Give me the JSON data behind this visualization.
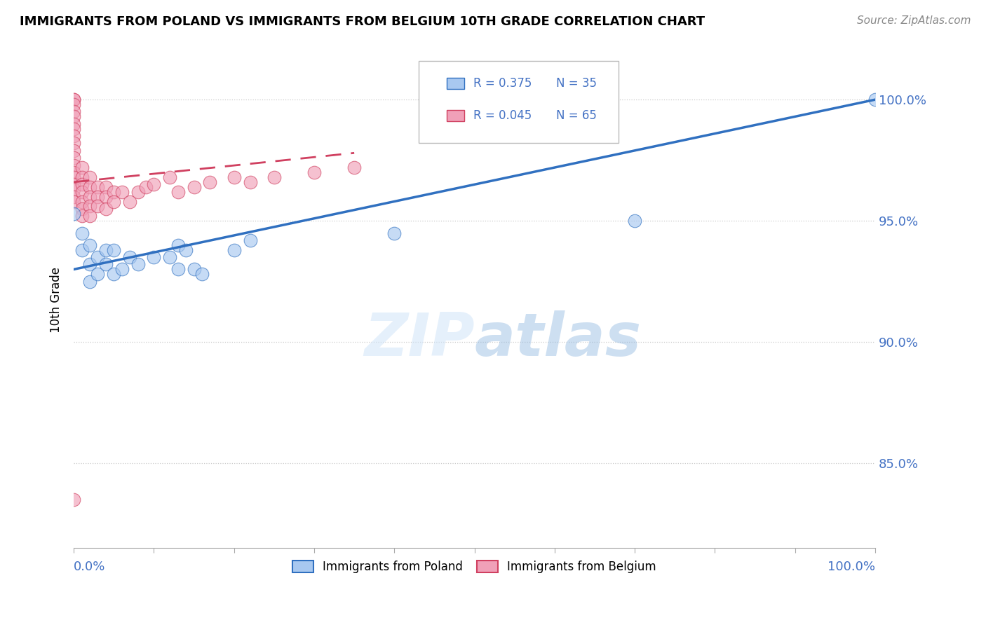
{
  "title": "IMMIGRANTS FROM POLAND VS IMMIGRANTS FROM BELGIUM 10TH GRADE CORRELATION CHART",
  "source": "Source: ZipAtlas.com",
  "ylabel": "10th Grade",
  "y_tick_labels": [
    "100.0%",
    "95.0%",
    "90.0%",
    "85.0%"
  ],
  "y_tick_values": [
    1.0,
    0.95,
    0.9,
    0.85
  ],
  "x_range": [
    0.0,
    1.0
  ],
  "y_range": [
    0.815,
    1.02
  ],
  "legend_r_poland": "R = 0.375",
  "legend_n_poland": "N = 35",
  "legend_r_belgium": "R = 0.045",
  "legend_n_belgium": "N = 65",
  "legend_label_poland": "Immigrants from Poland",
  "legend_label_belgium": "Immigrants from Belgium",
  "color_poland": "#A8C8F0",
  "color_belgium": "#F0A0B8",
  "color_trendline_poland": "#3070C0",
  "color_trendline_belgium": "#D04060",
  "poland_trendline_x": [
    0.0,
    1.0
  ],
  "poland_trendline_y": [
    0.93,
    1.0
  ],
  "belgium_trendline_x": [
    0.0,
    0.35
  ],
  "belgium_trendline_y": [
    0.966,
    0.978
  ],
  "poland_x": [
    0.0,
    0.01,
    0.01,
    0.02,
    0.02,
    0.02,
    0.03,
    0.03,
    0.04,
    0.04,
    0.05,
    0.05,
    0.06,
    0.07,
    0.08,
    0.1,
    0.12,
    0.13,
    0.13,
    0.14,
    0.15,
    0.16,
    0.2,
    0.22,
    0.4,
    0.7,
    1.0
  ],
  "poland_y": [
    0.953,
    0.945,
    0.938,
    0.94,
    0.932,
    0.925,
    0.935,
    0.928,
    0.938,
    0.932,
    0.938,
    0.928,
    0.93,
    0.935,
    0.932,
    0.935,
    0.935,
    0.94,
    0.93,
    0.938,
    0.93,
    0.928,
    0.938,
    0.942,
    0.945,
    0.95,
    1.0
  ],
  "belgium_x": [
    0.0,
    0.0,
    0.0,
    0.0,
    0.0,
    0.0,
    0.0,
    0.0,
    0.0,
    0.0,
    0.0,
    0.0,
    0.0,
    0.0,
    0.0,
    0.0,
    0.0,
    0.0,
    0.01,
    0.01,
    0.01,
    0.01,
    0.01,
    0.01,
    0.01,
    0.02,
    0.02,
    0.02,
    0.02,
    0.02,
    0.03,
    0.03,
    0.03,
    0.04,
    0.04,
    0.04,
    0.05,
    0.05,
    0.06,
    0.07,
    0.08,
    0.09,
    0.1,
    0.12,
    0.13,
    0.15,
    0.17,
    0.2,
    0.22,
    0.25,
    0.3,
    0.35
  ],
  "belgium_y": [
    1.0,
    1.0,
    0.998,
    0.995,
    0.993,
    0.99,
    0.988,
    0.985,
    0.982,
    0.979,
    0.976,
    0.973,
    0.97,
    0.968,
    0.965,
    0.963,
    0.96,
    0.958,
    0.972,
    0.968,
    0.965,
    0.962,
    0.958,
    0.955,
    0.952,
    0.968,
    0.964,
    0.96,
    0.956,
    0.952,
    0.964,
    0.96,
    0.956,
    0.964,
    0.96,
    0.955,
    0.962,
    0.958,
    0.962,
    0.958,
    0.962,
    0.964,
    0.965,
    0.968,
    0.962,
    0.964,
    0.966,
    0.968,
    0.966,
    0.968,
    0.97,
    0.972
  ],
  "belgium_low_x": [
    0.0
  ],
  "belgium_low_y": [
    0.835
  ]
}
